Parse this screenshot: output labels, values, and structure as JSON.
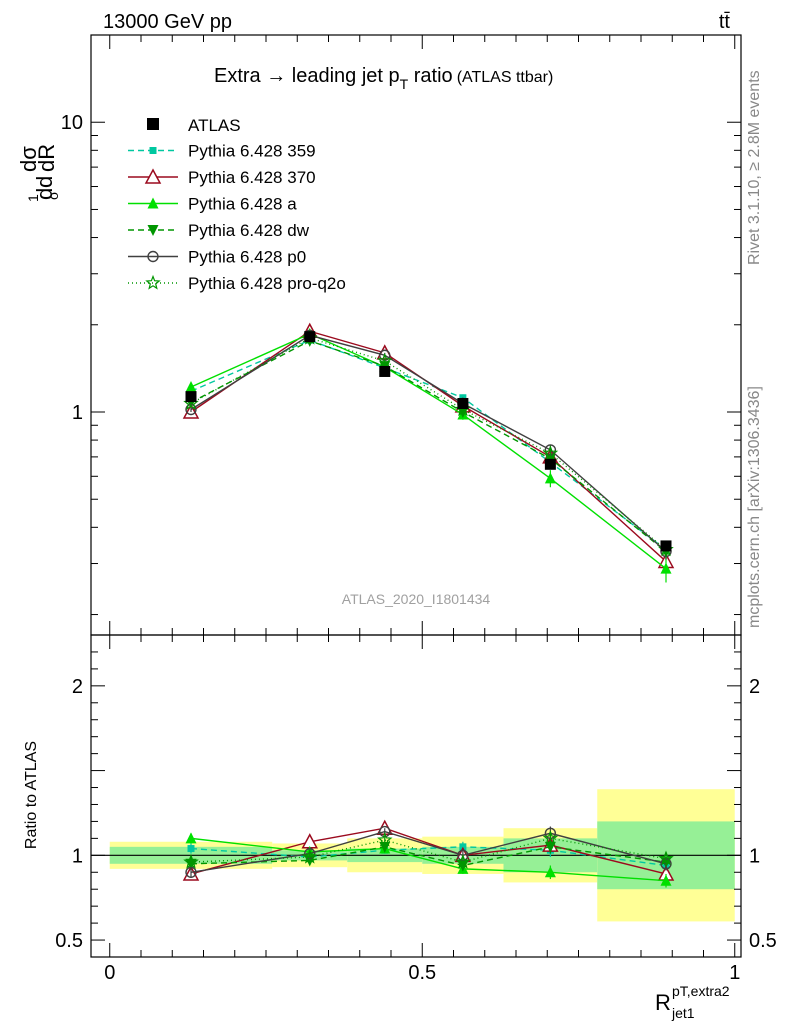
{
  "header": {
    "left": "13000 GeV pp",
    "right": "tt̄"
  },
  "side_labels": {
    "rivet": "Rivet 3.1.10, ≥ 2.8M events",
    "mcplots": "mcplots.cern.ch [arXiv:1306.3436]"
  },
  "watermark": "ATLAS_2020_I1801434",
  "title": {
    "main": "Extra → leading jet p",
    "sub": "T",
    "tail": " ratio",
    "small": "(ATLAS ttbar)"
  },
  "colors": {
    "ATLAS": "#000000",
    "359": "#00c8a0",
    "370": "#9b0a1e",
    "a": "#00e000",
    "dw": "#009600",
    "p0": "#404040",
    "pro-q2o": "#009600",
    "band_green": "#96f096",
    "band_yellow": "#ffff96"
  },
  "chart_data": {
    "type": "line",
    "upper": {
      "ylabel": "dσ/dR (normalized)",
      "yscale": "log",
      "ylim": [
        0.17,
        20
      ],
      "yticks": [
        {
          "v": 1,
          "label": "1"
        },
        {
          "v": 10,
          "label": "10"
        }
      ]
    },
    "lower": {
      "ylabel": "Ratio to ATLAS",
      "ylim": [
        0.4,
        2.3
      ],
      "yticks": [
        {
          "v": 0.5,
          "label": "0.5"
        },
        {
          "v": 1,
          "label": "1"
        },
        {
          "v": 2,
          "label": "2"
        }
      ]
    },
    "x": {
      "label": "R",
      "label_sup": "pT,extra2",
      "label_sub": "jet1",
      "lim": [
        -0.03,
        1.01
      ],
      "ticks": [
        {
          "v": 0,
          "label": "0"
        },
        {
          "v": 0.5,
          "label": "0.5"
        },
        {
          "v": 1,
          "label": "1"
        }
      ]
    },
    "bins": [
      {
        "lo": 0.0,
        "hi": 0.26,
        "x": 0.13
      },
      {
        "lo": 0.26,
        "hi": 0.38,
        "x": 0.32
      },
      {
        "lo": 0.38,
        "hi": 0.5,
        "x": 0.44
      },
      {
        "lo": 0.5,
        "hi": 0.63,
        "x": 0.565
      },
      {
        "lo": 0.63,
        "hi": 0.78,
        "x": 0.705
      },
      {
        "lo": 0.78,
        "hi": 1.0,
        "x": 0.89
      }
    ],
    "data": {
      "name": "ATLAS",
      "values": [
        1.13,
        1.82,
        1.38,
        1.07,
        0.66,
        0.345
      ],
      "band_stat": [
        0.05,
        0.03,
        0.04,
        0.05,
        0.1,
        0.2
      ],
      "band_total": [
        0.08,
        0.07,
        0.1,
        0.11,
        0.16,
        0.39
      ]
    },
    "series": [
      {
        "name": "Pythia 6.428 359",
        "key": "359",
        "marker": "square_small",
        "dash": "6,4",
        "values": [
          1.18,
          1.77,
          1.42,
          1.12,
          0.67,
          0.335
        ],
        "err": [
          0.02,
          0.03,
          0.02,
          0.03,
          0.03,
          0.02
        ]
      },
      {
        "name": "Pythia 6.428 370",
        "key": "370",
        "marker": "triangle_open",
        "dash": "",
        "values": [
          1.0,
          1.9,
          1.6,
          1.05,
          0.7,
          0.305
        ],
        "err": [
          0.02,
          0.03,
          0.03,
          0.03,
          0.03,
          0.02
        ]
      },
      {
        "name": "Pythia 6.428 a",
        "key": "a",
        "marker": "triangle_filled",
        "dash": "",
        "values": [
          1.22,
          1.86,
          1.43,
          0.98,
          0.59,
          0.288
        ],
        "err": [
          0.03,
          0.04,
          0.03,
          0.04,
          0.04,
          0.03
        ]
      },
      {
        "name": "Pythia 6.428 dw",
        "key": "dw",
        "marker": "triangle_down",
        "dash": "6,4",
        "values": [
          1.08,
          1.76,
          1.44,
          1.0,
          0.69,
          0.33
        ],
        "err": [
          0.02,
          0.03,
          0.03,
          0.03,
          0.03,
          0.02
        ]
      },
      {
        "name": "Pythia 6.428 p0",
        "key": "p0",
        "marker": "circle_open",
        "dash": "",
        "values": [
          1.02,
          1.84,
          1.57,
          1.07,
          0.74,
          0.33
        ],
        "err": [
          0.02,
          0.03,
          0.03,
          0.03,
          0.03,
          0.02
        ]
      },
      {
        "name": "Pythia 6.428 pro-q2o",
        "key": "pro-q2o",
        "marker": "star_open",
        "dash": "1,3",
        "values": [
          1.07,
          1.8,
          1.5,
          1.02,
          0.72,
          0.335
        ],
        "err": [
          0.02,
          0.03,
          0.03,
          0.03,
          0.03,
          0.02
        ]
      }
    ],
    "ratios": {
      "359": [
        1.04,
        0.99,
        1.03,
        1.05,
        1.03,
        0.94
      ],
      "370": [
        0.89,
        1.08,
        1.16,
        1.0,
        1.06,
        0.89
      ],
      "a": [
        1.1,
        1.02,
        1.04,
        0.92,
        0.9,
        0.85
      ],
      "dw": [
        0.95,
        0.97,
        1.05,
        0.94,
        1.05,
        0.96
      ],
      "p0": [
        0.9,
        1.01,
        1.14,
        1.0,
        1.13,
        0.95
      ],
      "pro-q2o": [
        0.96,
        0.99,
        1.09,
        0.96,
        1.1,
        0.98
      ]
    },
    "ratio_err": [
      0.03,
      0.02,
      0.02,
      0.03,
      0.04,
      0.04
    ]
  }
}
